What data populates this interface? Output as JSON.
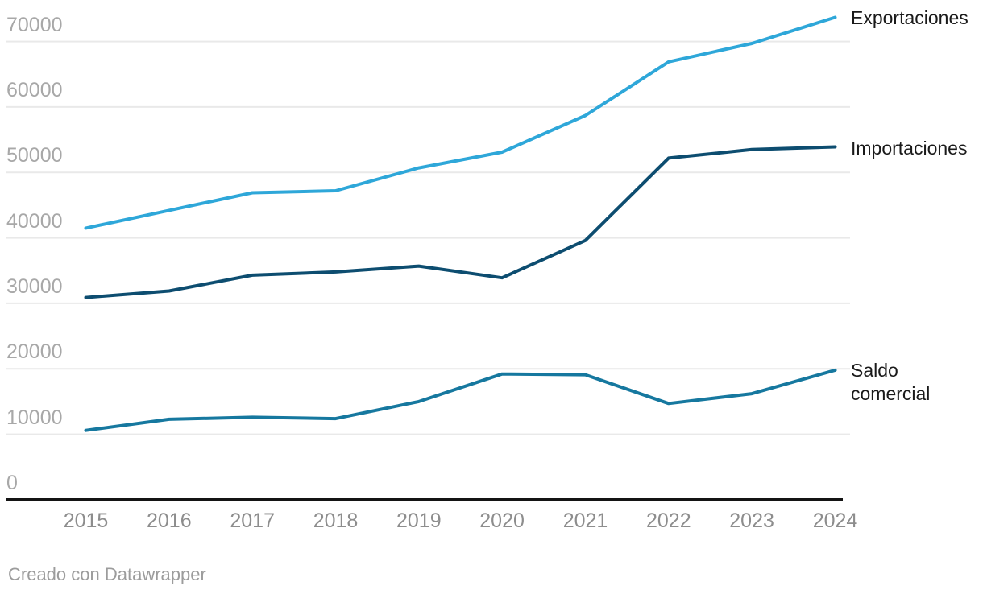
{
  "chart_data": {
    "type": "line",
    "x": [
      2015,
      2016,
      2017,
      2018,
      2019,
      2020,
      2021,
      2022,
      2023,
      2024
    ],
    "y_ticks": [
      70000,
      60000,
      50000,
      40000,
      30000,
      20000,
      10000,
      0
    ],
    "ylim": [
      0,
      75000
    ],
    "grid": "horizontal",
    "legend_position": "line-end-labels-right",
    "title": "",
    "xlabel": "",
    "ylabel": "",
    "series": [
      {
        "name": "Exportaciones",
        "color": "#2ea7d9",
        "values": [
          41500,
          44200,
          46900,
          47200,
          50700,
          53100,
          58700,
          66900,
          69700,
          73700
        ]
      },
      {
        "name": "Importaciones",
        "color": "#0d4d70",
        "values": [
          30900,
          31900,
          34300,
          34800,
          35700,
          33900,
          39600,
          52200,
          53500,
          53900
        ]
      },
      {
        "name": "Saldo comercial",
        "color": "#16789f",
        "values": [
          10600,
          12300,
          12600,
          12400,
          15000,
          19200,
          19100,
          14700,
          16200,
          19800
        ]
      }
    ]
  },
  "labels": {
    "exportaciones": "Exportaciones",
    "importaciones": "Importaciones",
    "saldo": "Saldo comercial"
  },
  "footer": {
    "credit": "Creado con Datawrapper"
  },
  "colors": {
    "grid": "#e9e9e9",
    "axis": "#141414",
    "y_tick_text": "#a8a8a8",
    "x_tick_text": "#8d8d8d",
    "series_label_text": "#1a1a1a",
    "footer_text": "#9c9c9c"
  }
}
